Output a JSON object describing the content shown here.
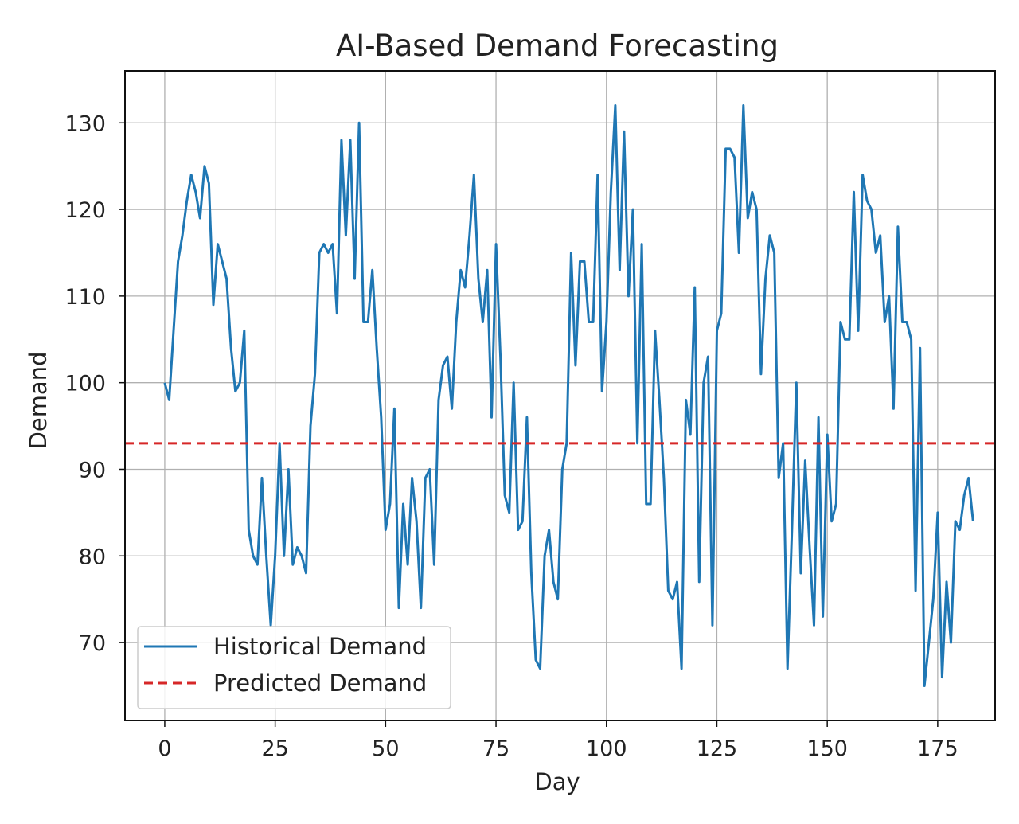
{
  "chart_data": {
    "type": "line",
    "title": "AI-Based Demand Forecasting",
    "xlabel": "Day",
    "ylabel": "Demand",
    "xlim": [
      -9,
      188
    ],
    "ylim": [
      61,
      136
    ],
    "xticks": [
      0,
      25,
      50,
      75,
      100,
      125,
      150,
      175
    ],
    "yticks": [
      70,
      80,
      90,
      100,
      110,
      120,
      130
    ],
    "grid": true,
    "legend_position": "lower-left",
    "series": [
      {
        "name": "Historical Demand",
        "color": "#1f77b4",
        "style": "solid",
        "x_start": 0,
        "x_step": 1,
        "values": [
          100,
          98,
          106,
          114,
          117,
          121,
          124,
          122,
          119,
          125,
          123,
          109,
          116,
          114,
          112,
          104,
          99,
          100,
          106,
          83,
          80,
          79,
          89,
          80,
          72,
          80,
          93,
          80,
          90,
          79,
          81,
          80,
          78,
          95,
          101,
          115,
          116,
          115,
          116,
          108,
          128,
          117,
          128,
          112,
          130,
          107,
          107,
          113,
          104,
          96,
          83,
          86,
          97,
          74,
          86,
          79,
          89,
          84,
          74,
          89,
          90,
          79,
          98,
          102,
          103,
          97,
          107,
          113,
          111,
          117,
          124,
          112,
          107,
          113,
          96,
          116,
          103,
          87,
          85,
          100,
          83,
          84,
          96,
          78,
          68,
          67,
          80,
          83,
          77,
          75,
          90,
          93,
          115,
          102,
          114,
          114,
          107,
          107,
          124,
          99,
          107,
          122,
          132,
          113,
          129,
          110,
          120,
          93,
          116,
          86,
          86,
          106,
          98,
          89,
          76,
          75,
          77,
          67,
          98,
          94,
          111,
          77,
          100,
          103,
          72,
          106,
          108,
          127,
          127,
          126,
          115,
          132,
          119,
          122,
          120,
          101,
          112,
          117,
          115,
          89,
          93,
          67,
          83,
          100,
          78,
          91,
          81,
          72,
          96,
          73,
          94,
          84,
          86,
          107,
          105,
          105,
          122,
          106,
          124,
          121,
          120,
          115,
          117,
          107,
          110,
          97,
          118,
          107,
          107,
          105,
          76,
          104,
          65,
          70,
          75,
          85,
          66,
          77,
          70,
          84,
          83,
          87,
          89,
          84
        ]
      },
      {
        "name": "Predicted Demand",
        "color": "#d62728",
        "style": "dashed",
        "constant": 93
      }
    ]
  }
}
